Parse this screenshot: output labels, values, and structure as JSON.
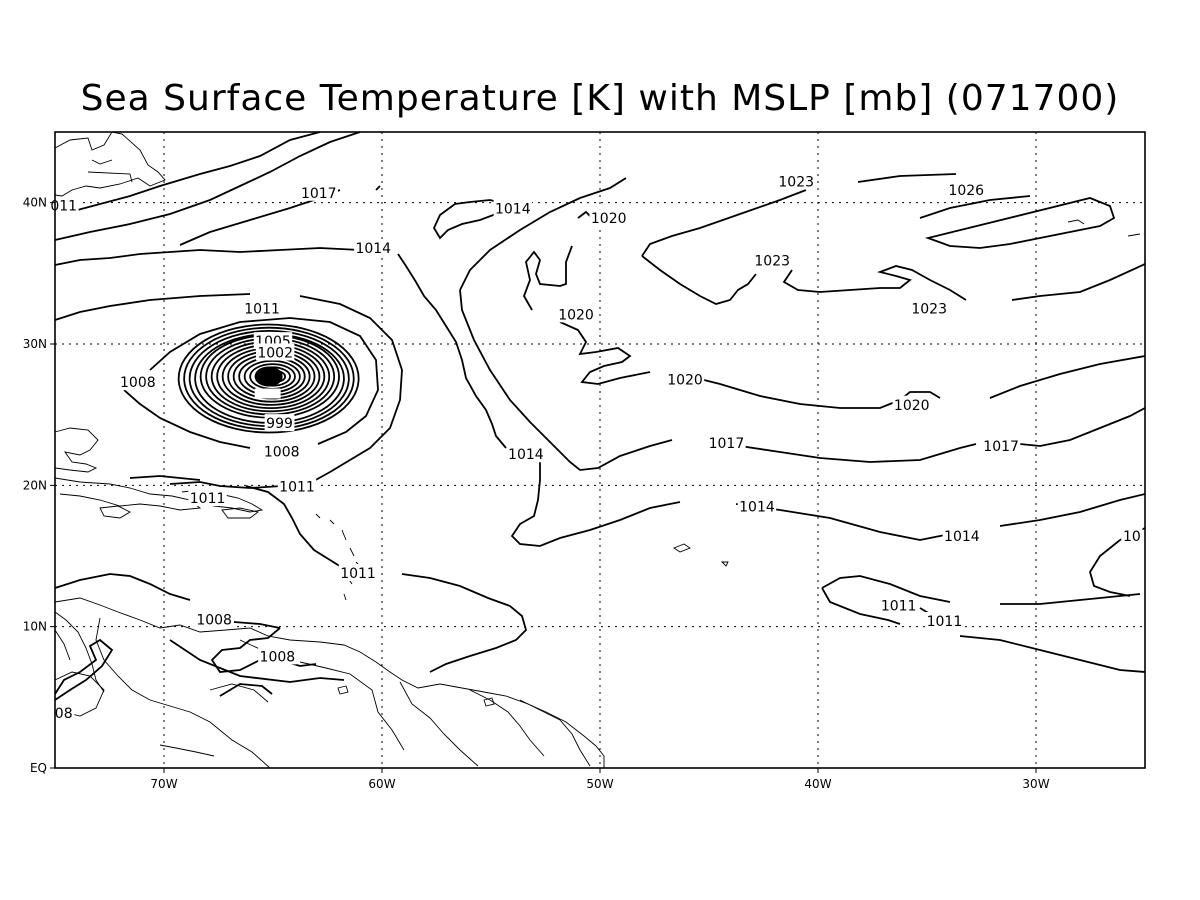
{
  "title": "Sea Surface Temperature [K] with MSLP [mb] (071700)",
  "map": {
    "lon_range": [
      -75,
      -25
    ],
    "lat_range": [
      0,
      45
    ],
    "lon_ticks": [
      {
        "value": -70,
        "label": "70W"
      },
      {
        "value": -60,
        "label": "60W"
      },
      {
        "value": -50,
        "label": "50W"
      },
      {
        "value": -40,
        "label": "40W"
      },
      {
        "value": -30,
        "label": "30W"
      }
    ],
    "lat_ticks": [
      {
        "value": 0,
        "label": "EQ"
      },
      {
        "value": 10,
        "label": "10N"
      },
      {
        "value": 20,
        "label": "20N"
      },
      {
        "value": 30,
        "label": "30N"
      },
      {
        "value": 40,
        "label": "40N"
      }
    ],
    "grid": true
  },
  "contour_labels": [
    {
      "text": "1017",
      "lon": -62.9,
      "lat": 40.7
    },
    {
      "text": "011",
      "lon": -74.6,
      "lat": 39.8
    },
    {
      "text": "1014",
      "lon": -60.4,
      "lat": 36.8
    },
    {
      "text": "1014",
      "lon": -54.0,
      "lat": 39.6
    },
    {
      "text": "1020",
      "lon": -49.6,
      "lat": 38.9
    },
    {
      "text": "1023",
      "lon": -41.0,
      "lat": 41.5
    },
    {
      "text": "1026",
      "lon": -33.2,
      "lat": 40.9
    },
    {
      "text": "1023",
      "lon": -42.1,
      "lat": 35.9
    },
    {
      "text": "1023",
      "lon": -34.9,
      "lat": 32.5
    },
    {
      "text": "1020",
      "lon": -51.1,
      "lat": 32.1
    },
    {
      "text": "1020",
      "lon": -46.1,
      "lat": 27.5
    },
    {
      "text": "1020",
      "lon": -35.7,
      "lat": 25.7
    },
    {
      "text": "1017",
      "lon": -44.2,
      "lat": 23.0
    },
    {
      "text": "1017",
      "lon": -31.6,
      "lat": 22.8
    },
    {
      "text": "1014",
      "lon": -53.4,
      "lat": 22.2
    },
    {
      "text": "1014",
      "lon": -42.8,
      "lat": 18.5
    },
    {
      "text": "1014",
      "lon": -33.4,
      "lat": 16.4
    },
    {
      "text": "10",
      "lon": -25.6,
      "lat": 16.4
    },
    {
      "text": "1011",
      "lon": -65.5,
      "lat": 32.5
    },
    {
      "text": "1005",
      "lon": -65.0,
      "lat": 30.2
    },
    {
      "text": "1002",
      "lon": -64.9,
      "lat": 29.4
    },
    {
      "text": "1008",
      "lon": -71.2,
      "lat": 27.3
    },
    {
      "text": "999",
      "lon": -64.7,
      "lat": 24.4
    },
    {
      "text": "1008",
      "lon": -64.6,
      "lat": 22.4
    },
    {
      "text": "1011",
      "lon": -63.9,
      "lat": 19.9
    },
    {
      "text": "1011",
      "lon": -68.0,
      "lat": 19.1
    },
    {
      "text": "1011",
      "lon": -61.1,
      "lat": 13.8
    },
    {
      "text": "1008",
      "lon": -67.7,
      "lat": 10.5
    },
    {
      "text": "1008",
      "lon": -64.8,
      "lat": 7.9
    },
    {
      "text": "08",
      "lon": -74.6,
      "lat": 3.9
    },
    {
      "text": "1011",
      "lon": -36.3,
      "lat": 11.5
    },
    {
      "text": "1011",
      "lon": -34.2,
      "lat": 10.4
    }
  ],
  "low_center": {
    "lon": -65.2,
    "lat": 27.7
  }
}
